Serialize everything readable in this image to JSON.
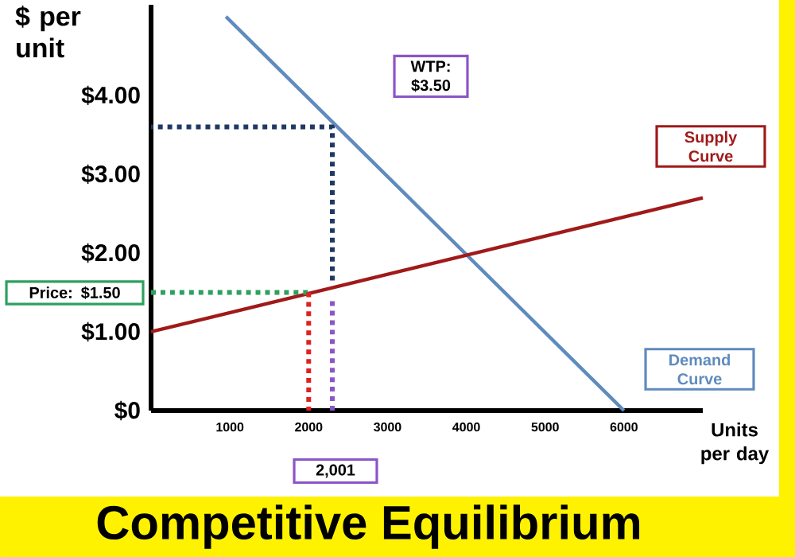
{
  "chart_data": {
    "type": "line",
    "title": "Competitive Equilibrium",
    "xlabel": "Units per day",
    "ylabel": "$ per unit",
    "xlim": [
      0,
      7000
    ],
    "ylim": [
      0,
      5.15
    ],
    "xticks": [
      1000,
      2000,
      3000,
      4000,
      5000,
      6000
    ],
    "yticks": [
      {
        "value": 0,
        "label": "$0"
      },
      {
        "value": 1,
        "label": "$1.00"
      },
      {
        "value": 2,
        "label": "$2.00"
      },
      {
        "value": 3,
        "label": "$3.00"
      },
      {
        "value": 4,
        "label": "$4.00"
      }
    ],
    "series": [
      {
        "name": "Demand Curve",
        "color": "#5f8bbd",
        "line_style": "solid",
        "x": [
          950,
          6000
        ],
        "values": [
          5.0,
          0
        ]
      },
      {
        "name": "Supply Curve",
        "color": "#a01a1a",
        "line_style": "solid",
        "x": [
          0,
          7000
        ],
        "values": [
          1.0,
          2.7
        ]
      },
      {
        "color": "#2ea060",
        "line_style": "dotted",
        "x": [
          0,
          2000
        ],
        "values": [
          1.5,
          1.5
        ]
      },
      {
        "color": "#e02020",
        "line_style": "dotted",
        "x": [
          2000,
          2000
        ],
        "values": [
          1.5,
          0
        ]
      },
      {
        "color": "#8a55c8",
        "line_style": "dotted",
        "x": [
          2300,
          2300
        ],
        "values": [
          0,
          1.45
        ]
      },
      {
        "color": "#1f3864",
        "line_style": "dotted",
        "x": [
          2300,
          2300,
          0
        ],
        "values": [
          1.65,
          3.6,
          3.6
        ]
      }
    ],
    "annotations": [
      "WTP: $3.50",
      "Price: $1.50",
      "2,001"
    ]
  }
}
